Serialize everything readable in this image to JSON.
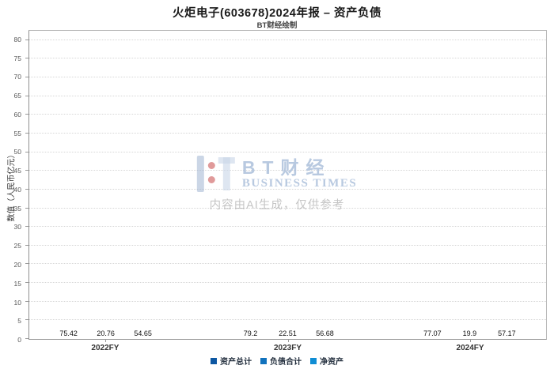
{
  "title": "火炬电子(603678)2024年报 – 资产负债",
  "subtitle": "BT财经绘制",
  "watermark": {
    "brand_cn": "BT财经",
    "brand_en": "BUSINESS TIMES",
    "disclaimer": "内容由AI生成，仅供参考"
  },
  "chart_data": {
    "type": "bar",
    "categories": [
      "2022FY",
      "2023FY",
      "2024FY"
    ],
    "series": [
      {
        "name": "资产总计",
        "color": "#0d57a2",
        "values": [
          75.42,
          79.2,
          77.07
        ]
      },
      {
        "name": "负债合计",
        "color": "#1172bd",
        "values": [
          20.76,
          22.51,
          19.9
        ]
      },
      {
        "name": "净资产",
        "color": "#0f8dd4",
        "values": [
          54.65,
          56.68,
          57.17
        ]
      }
    ],
    "title": "火炬电子(603678)2024年报 – 资产负债",
    "xlabel": "",
    "ylabel": "数值（人民币亿元）",
    "ylim": [
      0,
      82.5
    ],
    "ytick_interval": 5,
    "ytick_max": 80,
    "grid": true,
    "legend_position": "bottom",
    "group_centers_pct": [
      14.8,
      50,
      85.2
    ]
  }
}
